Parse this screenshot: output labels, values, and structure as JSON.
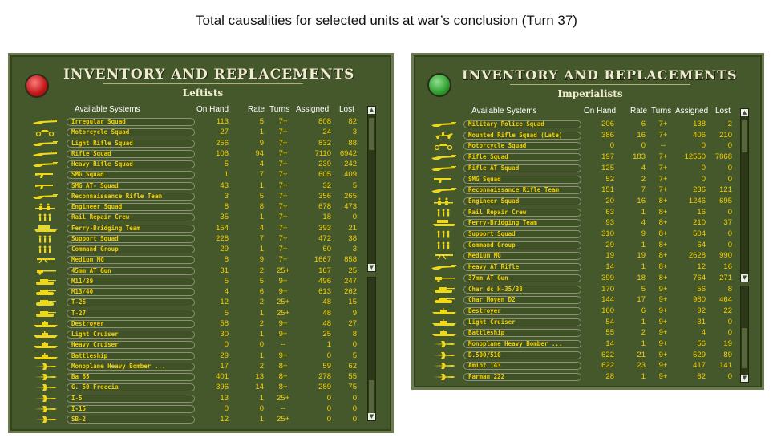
{
  "page_title": "Total causalities for selected units at war’s conclusion (Turn 37)",
  "panels": [
    {
      "id": "left",
      "title": "INVENTORY AND REPLACEMENTS",
      "side": "Leftists",
      "status_color": "#c01616",
      "headers": {
        "system": "Available Systems",
        "on_hand": "On Hand",
        "rate": "Rate",
        "turns": "Turns",
        "assigned": "Assigned",
        "lost": "Lost"
      },
      "rows": [
        {
          "icon": "rifle",
          "name": "Irregular Squad",
          "on_hand": "113",
          "rate": "5",
          "turns": "7+",
          "assigned": "808",
          "lost": "82"
        },
        {
          "icon": "motorcycle",
          "name": "Motorcycle Squad",
          "on_hand": "27",
          "rate": "1",
          "turns": "7+",
          "assigned": "24",
          "lost": "3"
        },
        {
          "icon": "rifle",
          "name": "Light Rifle Squad",
          "on_hand": "256",
          "rate": "9",
          "turns": "7+",
          "assigned": "832",
          "lost": "88"
        },
        {
          "icon": "rifle",
          "name": "Rifle Squad",
          "on_hand": "106",
          "rate": "94",
          "turns": "7+",
          "assigned": "7110",
          "lost": "6942"
        },
        {
          "icon": "rifle",
          "name": "Heavy Rifle Squad",
          "on_hand": "5",
          "rate": "4",
          "turns": "7+",
          "assigned": "239",
          "lost": "242"
        },
        {
          "icon": "smg",
          "name": "SMG Squad",
          "on_hand": "1",
          "rate": "7",
          "turns": "7+",
          "assigned": "605",
          "lost": "409"
        },
        {
          "icon": "smg",
          "name": "SMG AT- Squad",
          "on_hand": "43",
          "rate": "1",
          "turns": "7+",
          "assigned": "32",
          "lost": "5"
        },
        {
          "icon": "rifle",
          "name": "Reconnaissance Rifle Team",
          "on_hand": "3",
          "rate": "5",
          "turns": "7+",
          "assigned": "356",
          "lost": "265"
        },
        {
          "icon": "engineer",
          "name": "Engineer Squad",
          "on_hand": "8",
          "rate": "8",
          "turns": "7+",
          "assigned": "678",
          "lost": "473"
        },
        {
          "icon": "soldiers",
          "name": "Rail Repair Crew",
          "on_hand": "35",
          "rate": "1",
          "turns": "7+",
          "assigned": "18",
          "lost": "0"
        },
        {
          "icon": "bridging",
          "name": "Ferry-Bridging Team",
          "on_hand": "154",
          "rate": "4",
          "turns": "7+",
          "assigned": "393",
          "lost": "21"
        },
        {
          "icon": "soldiers",
          "name": "Support Squad",
          "on_hand": "228",
          "rate": "7",
          "turns": "7+",
          "assigned": "472",
          "lost": "38"
        },
        {
          "icon": "soldiers",
          "name": "Command Group",
          "on_hand": "29",
          "rate": "1",
          "turns": "7+",
          "assigned": "60",
          "lost": "3"
        },
        {
          "icon": "mg",
          "name": "Medium MG",
          "on_hand": "8",
          "rate": "9",
          "turns": "7+",
          "assigned": "1667",
          "lost": "858"
        },
        {
          "icon": "atgun",
          "name": "45mm AT Gun",
          "on_hand": "31",
          "rate": "2",
          "turns": "25+",
          "assigned": "167",
          "lost": "25"
        },
        {
          "icon": "tank",
          "name": "M11/39",
          "on_hand": "5",
          "rate": "5",
          "turns": "9+",
          "assigned": "496",
          "lost": "247"
        },
        {
          "icon": "tank",
          "name": "M13/40",
          "on_hand": "4",
          "rate": "6",
          "turns": "9+",
          "assigned": "613",
          "lost": "262"
        },
        {
          "icon": "tank",
          "name": "T-26",
          "on_hand": "12",
          "rate": "2",
          "turns": "25+",
          "assigned": "48",
          "lost": "15"
        },
        {
          "icon": "tank",
          "name": "T-27",
          "on_hand": "5",
          "rate": "1",
          "turns": "25+",
          "assigned": "48",
          "lost": "9"
        },
        {
          "icon": "ship",
          "name": "Destroyer",
          "on_hand": "58",
          "rate": "2",
          "turns": "9+",
          "assigned": "48",
          "lost": "27"
        },
        {
          "icon": "ship",
          "name": "Light Cruiser",
          "on_hand": "30",
          "rate": "1",
          "turns": "9+",
          "assigned": "25",
          "lost": "8"
        },
        {
          "icon": "ship",
          "name": "Heavy Cruiser",
          "on_hand": "0",
          "rate": "0",
          "turns": "--",
          "assigned": "1",
          "lost": "0"
        },
        {
          "icon": "ship",
          "name": "Battleship",
          "on_hand": "29",
          "rate": "1",
          "turns": "9+",
          "assigned": "0",
          "lost": "5"
        },
        {
          "icon": "plane",
          "name": "Monoplane Heavy Bomber ...",
          "on_hand": "17",
          "rate": "2",
          "turns": "8+",
          "assigned": "59",
          "lost": "62"
        },
        {
          "icon": "plane",
          "name": "Ba 65",
          "on_hand": "401",
          "rate": "13",
          "turns": "8+",
          "assigned": "278",
          "lost": "55"
        },
        {
          "icon": "plane",
          "name": "G. 50 Freccia",
          "on_hand": "396",
          "rate": "14",
          "turns": "8+",
          "assigned": "289",
          "lost": "75"
        },
        {
          "icon": "plane",
          "name": "I-5",
          "on_hand": "13",
          "rate": "1",
          "turns": "25+",
          "assigned": "0",
          "lost": "0"
        },
        {
          "icon": "plane",
          "name": "I-15",
          "on_hand": "0",
          "rate": "0",
          "turns": "--",
          "assigned": "0",
          "lost": "0"
        },
        {
          "icon": "plane",
          "name": "SB-2",
          "on_hand": "12",
          "rate": "1",
          "turns": "25+",
          "assigned": "0",
          "lost": "0"
        }
      ]
    },
    {
      "id": "right",
      "title": "INVENTORY AND REPLACEMENTS",
      "side": "Imperialists",
      "status_color": "#2e9e2e",
      "headers": {
        "system": "Available Systems",
        "on_hand": "On Hand",
        "rate": "Rate",
        "turns": "Turns",
        "assigned": "Assigned",
        "lost": "Lost"
      },
      "rows": [
        {
          "icon": "rifle",
          "name": "Military Police Squad",
          "on_hand": "206",
          "rate": "6",
          "turns": "7+",
          "assigned": "138",
          "lost": "2"
        },
        {
          "icon": "cavalry",
          "name": "Mounted Rifle Squad (Late)",
          "on_hand": "386",
          "rate": "16",
          "turns": "7+",
          "assigned": "406",
          "lost": "210"
        },
        {
          "icon": "motorcycle",
          "name": "Motorcycle Squad",
          "on_hand": "0",
          "rate": "0",
          "turns": "--",
          "assigned": "0",
          "lost": "0"
        },
        {
          "icon": "rifle",
          "name": "Rifle Squad",
          "on_hand": "197",
          "rate": "183",
          "turns": "7+",
          "assigned": "12550",
          "lost": "7868"
        },
        {
          "icon": "rifle",
          "name": "Rifle AT Squad",
          "on_hand": "125",
          "rate": "4",
          "turns": "7+",
          "assigned": "0",
          "lost": "0"
        },
        {
          "icon": "smg",
          "name": "SMG Squad",
          "on_hand": "52",
          "rate": "2",
          "turns": "7+",
          "assigned": "0",
          "lost": "0"
        },
        {
          "icon": "rifle",
          "name": "Reconnaissance Rifle Team",
          "on_hand": "151",
          "rate": "7",
          "turns": "7+",
          "assigned": "236",
          "lost": "121"
        },
        {
          "icon": "engineer",
          "name": "Engineer Squad",
          "on_hand": "20",
          "rate": "16",
          "turns": "8+",
          "assigned": "1246",
          "lost": "695"
        },
        {
          "icon": "soldiers",
          "name": "Rail Repair Crew",
          "on_hand": "63",
          "rate": "1",
          "turns": "8+",
          "assigned": "16",
          "lost": "0"
        },
        {
          "icon": "bridging",
          "name": "Ferry-Bridging Team",
          "on_hand": "93",
          "rate": "4",
          "turns": "8+",
          "assigned": "210",
          "lost": "37"
        },
        {
          "icon": "soldiers",
          "name": "Support Squad",
          "on_hand": "310",
          "rate": "9",
          "turns": "8+",
          "assigned": "504",
          "lost": "0"
        },
        {
          "icon": "soldiers",
          "name": "Command Group",
          "on_hand": "29",
          "rate": "1",
          "turns": "8+",
          "assigned": "64",
          "lost": "0"
        },
        {
          "icon": "mg",
          "name": "Medium MG",
          "on_hand": "19",
          "rate": "19",
          "turns": "8+",
          "assigned": "2628",
          "lost": "990"
        },
        {
          "icon": "rifle",
          "name": "Heavy AT Rifle",
          "on_hand": "14",
          "rate": "1",
          "turns": "8+",
          "assigned": "12",
          "lost": "16"
        },
        {
          "icon": "atgun",
          "name": "37mm AT Gun",
          "on_hand": "399",
          "rate": "18",
          "turns": "8+",
          "assigned": "764",
          "lost": "271"
        },
        {
          "icon": "tank",
          "name": "Char dc H-35/38",
          "on_hand": "170",
          "rate": "5",
          "turns": "9+",
          "assigned": "56",
          "lost": "8"
        },
        {
          "icon": "tank",
          "name": "Char Moyen D2",
          "on_hand": "144",
          "rate": "17",
          "turns": "9+",
          "assigned": "980",
          "lost": "464"
        },
        {
          "icon": "ship",
          "name": "Destroyer",
          "on_hand": "160",
          "rate": "6",
          "turns": "9+",
          "assigned": "92",
          "lost": "22"
        },
        {
          "icon": "ship",
          "name": "Light Cruiser",
          "on_hand": "54",
          "rate": "1",
          "turns": "9+",
          "assigned": "31",
          "lost": "0"
        },
        {
          "icon": "ship",
          "name": "Battleship",
          "on_hand": "55",
          "rate": "2",
          "turns": "9+",
          "assigned": "4",
          "lost": "0"
        },
        {
          "icon": "plane",
          "name": "Monoplane Heavy Bomber ...",
          "on_hand": "14",
          "rate": "1",
          "turns": "9+",
          "assigned": "56",
          "lost": "19"
        },
        {
          "icon": "plane",
          "name": "D.500/510",
          "on_hand": "622",
          "rate": "21",
          "turns": "9+",
          "assigned": "529",
          "lost": "89"
        },
        {
          "icon": "plane",
          "name": "Amiot 143",
          "on_hand": "622",
          "rate": "23",
          "turns": "9+",
          "assigned": "417",
          "lost": "141"
        },
        {
          "icon": "plane",
          "name": "Farman 222",
          "on_hand": "28",
          "rate": "1",
          "turns": "9+",
          "assigned": "62",
          "lost": "0"
        }
      ]
    }
  ]
}
